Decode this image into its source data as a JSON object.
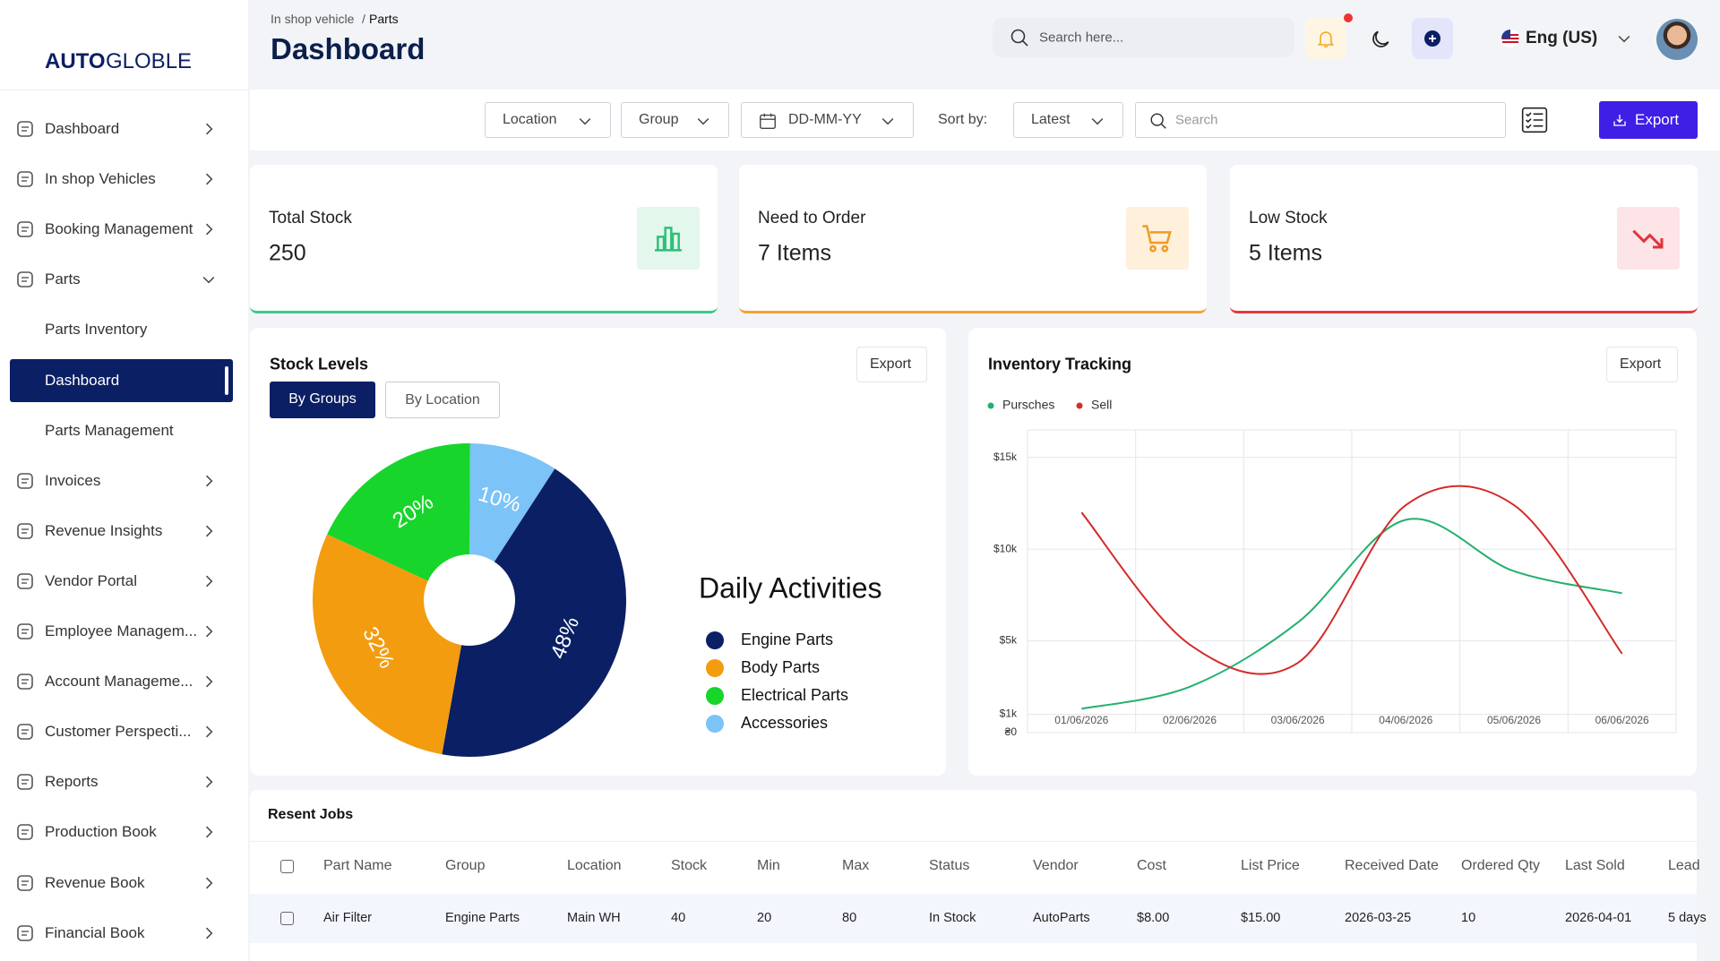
{
  "sidebar": {
    "logo_bold": "AUTO",
    "logo_light": "GLOBLE",
    "items": [
      {
        "label": "Dashboard"
      },
      {
        "label": "In shop Vehicles"
      },
      {
        "label": "Booking Management"
      },
      {
        "label": "Parts",
        "children": [
          "Parts Inventory",
          "Dashboard",
          "Parts Management"
        ],
        "active_child": 1
      },
      {
        "label": "Invoices"
      },
      {
        "label": "Revenue Insights"
      },
      {
        "label": "Vendor Portal"
      },
      {
        "label": "Employee Managem..."
      },
      {
        "label": "Account Manageme..."
      },
      {
        "label": "Customer Perspecti..."
      },
      {
        "label": "Reports"
      },
      {
        "label": "Production Book"
      },
      {
        "label": "Revenue Book"
      },
      {
        "label": "Financial  Book"
      }
    ]
  },
  "header": {
    "breadcrumb": [
      "In shop vehicle",
      "Parts"
    ],
    "breadcrumb_separator": "/",
    "title": "Dashboard",
    "search_placeholder": "Search here...",
    "language": "Eng (US)"
  },
  "filters": {
    "location": "Location",
    "group": "Group",
    "date": "DD-MM-YY",
    "sort_label": "Sort by:",
    "sort_value": "Latest",
    "search_placeholder": "Search",
    "export": "Export"
  },
  "stats": [
    {
      "label": "Total Stock",
      "value": "250"
    },
    {
      "label": "Need to Order",
      "value": "7 Items"
    },
    {
      "label": "Low Stock",
      "value": "5 Items"
    }
  ],
  "stock_levels": {
    "title": "Stock Levels",
    "export": "Export",
    "tabs": [
      "By Groups",
      "By Location"
    ],
    "chart": {
      "type": "pie",
      "title": "Daily Activities",
      "categories": [
        "Engine Parts",
        "Body Parts",
        "Electrical Parts",
        "Accessories"
      ],
      "values": [
        48,
        32,
        20,
        10
      ],
      "value_labels": [
        "48%",
        "32%",
        "20%",
        "10%"
      ],
      "colors": [
        "#0b1f64",
        "#f39c0f",
        "#17d52b",
        "#7cc3f7"
      ]
    }
  },
  "inventory_tracking": {
    "title": "Inventory Tracking",
    "export": "Export",
    "chart": {
      "type": "line",
      "categories": [
        "01/06/2026",
        "02/06/2026",
        "03/06/2026",
        "04/06/2026",
        "05/06/2026",
        "06/06/2026"
      ],
      "series": [
        {
          "name": "Pursches",
          "color": "#22b06c",
          "values": [
            1300,
            2500,
            6000,
            11600,
            8800,
            7600
          ]
        },
        {
          "name": "Sell",
          "color": "#d42a2a",
          "values": [
            12000,
            4800,
            3800,
            12400,
            12400,
            4300
          ]
        }
      ],
      "ylim": [
        0,
        16500
      ],
      "yticks": [
        {
          "value": 0,
          "label": "₴0"
        },
        {
          "value": 1000,
          "label": "$1k"
        },
        {
          "value": 5000,
          "label": "$5k"
        },
        {
          "value": 10000,
          "label": "$10k"
        },
        {
          "value": 15000,
          "label": "$15k"
        }
      ],
      "grid": true
    }
  },
  "recent_jobs": {
    "title": "Resent Jobs",
    "columns": [
      "Part Name",
      "Group",
      "Location",
      "Stock",
      "Min",
      "Max",
      "Status",
      "Vendor",
      "Cost",
      "List Price",
      "Received Date",
      "Ordered Qty",
      "Last Sold",
      "Lead"
    ],
    "rows": [
      [
        "Air Filter",
        "Engine Parts",
        "Main WH",
        "40",
        "20",
        "80",
        "In Stock",
        "AutoParts",
        "$8.00",
        "$15.00",
        "2026-03-25",
        "10",
        "2026-04-01",
        "5 days"
      ]
    ]
  }
}
